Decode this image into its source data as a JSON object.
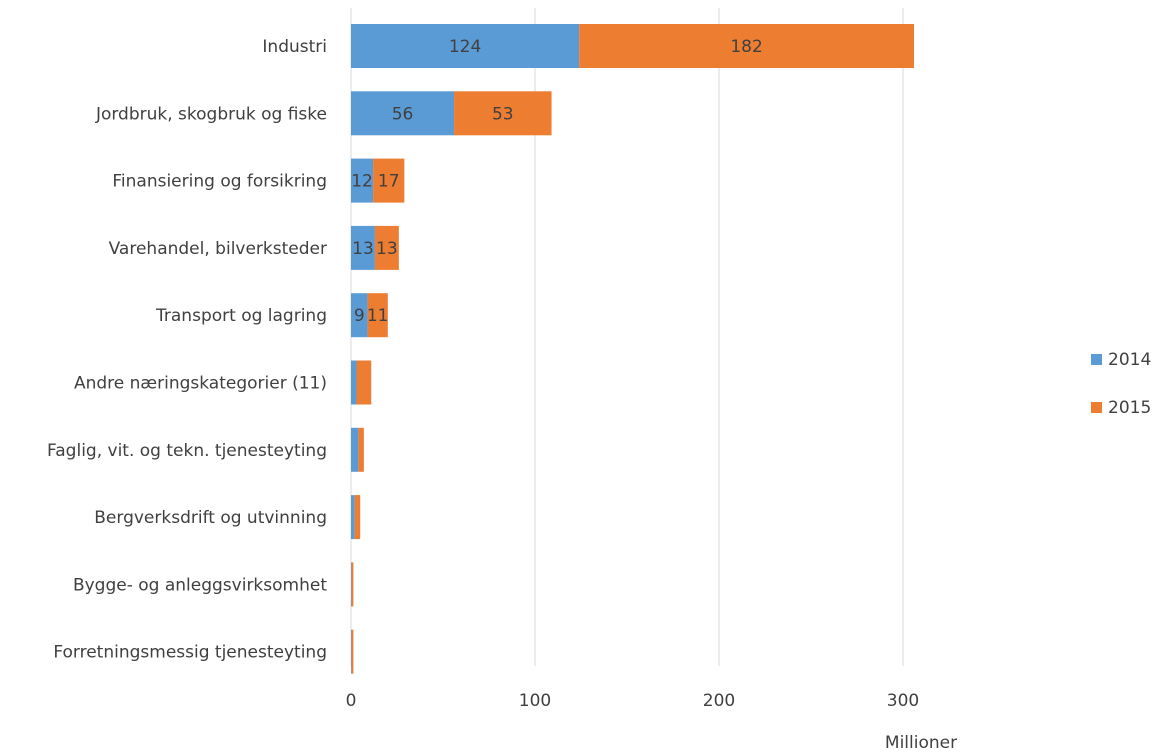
{
  "chart_data": {
    "type": "bar",
    "orientation": "horizontal",
    "stacked": true,
    "categories": [
      "Industri",
      "Jordbruk, skogbruk og fiske",
      "Finansiering og forsikring",
      "Varehandel, bilverksteder",
      "Transport og lagring",
      "Andre næringskategorier (11)",
      "Faglig, vit. og tekn. tjenesteyting",
      "Bergverksdrift og utvinning",
      "Bygge- og anleggsvirksomhet",
      "Forretningsmessig tjenesteyting"
    ],
    "series": [
      {
        "name": "2014",
        "color": "#5b9bd5",
        "values": [
          124,
          56,
          12,
          13,
          9,
          3,
          4,
          2,
          0.3,
          0.3
        ],
        "labels": [
          "124",
          "56",
          "12",
          "13",
          "9",
          "",
          "",
          "",
          "",
          ""
        ]
      },
      {
        "name": "2015",
        "color": "#ed7d31",
        "values": [
          182,
          53,
          17,
          13,
          11,
          8,
          3,
          3,
          1,
          1
        ],
        "labels": [
          "182",
          "53",
          "17",
          "13",
          "11",
          "",
          "",
          "",
          "",
          ""
        ]
      }
    ],
    "xlim": [
      0,
      300
    ],
    "x_ticks": [
      "0",
      "100",
      "200",
      "300"
    ],
    "x_unit_label": "Millioner",
    "grid": true,
    "legend_position": "right"
  }
}
